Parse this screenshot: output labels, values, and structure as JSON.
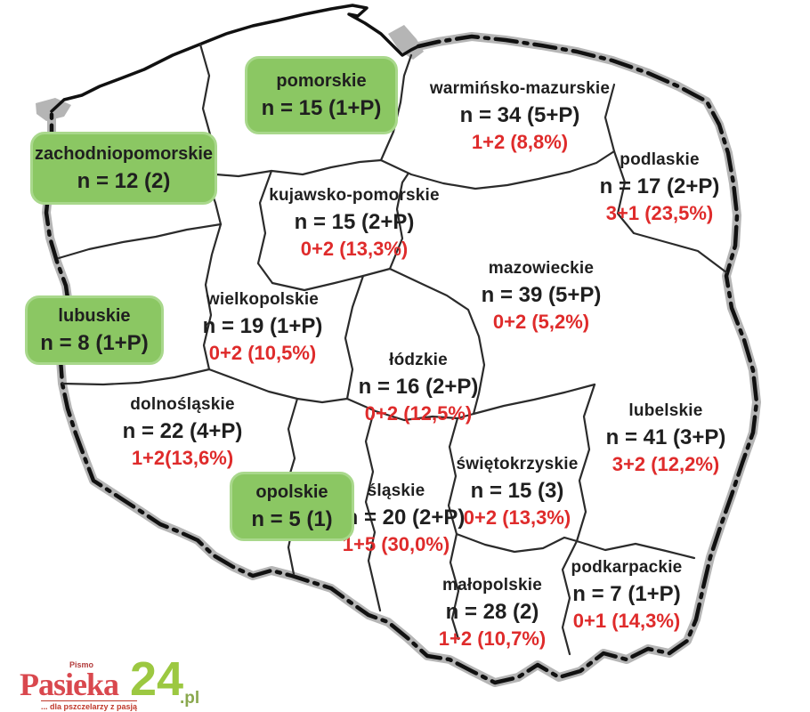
{
  "colors": {
    "box_green": "#8bc763",
    "box_green_border": "#a9d88c",
    "stat_red": "#df2b2b",
    "text_black": "#1f1f1f",
    "border_gray": "#b5b5b5"
  },
  "regions": [
    {
      "id": "pomorskie",
      "name": "pomorskie",
      "stat": "n = 15 (1+P)",
      "pct": null,
      "boxed": true
    },
    {
      "id": "zachodniopomorskie",
      "name": "zachodniopomorskie",
      "stat": "n = 12 (2)",
      "pct": null,
      "boxed": true
    },
    {
      "id": "warminsko-mazurskie",
      "name": "warmińsko-mazurskie",
      "stat": "n = 34 (5+P)",
      "pct": "1+2 (8,8%)",
      "boxed": false
    },
    {
      "id": "podlaskie",
      "name": "podlaskie",
      "stat": "n = 17 (2+P)",
      "pct": "3+1 (23,5%)",
      "boxed": false
    },
    {
      "id": "kujawsko-pomorskie",
      "name": "kujawsko-pomorskie",
      "stat": "n = 15 (2+P)",
      "pct": "0+2 (13,3%)",
      "boxed": false
    },
    {
      "id": "mazowieckie",
      "name": "mazowieckie",
      "stat": "n = 39 (5+P)",
      "pct": "0+2 (5,2%)",
      "boxed": false
    },
    {
      "id": "lubuskie",
      "name": "lubuskie",
      "stat": "n = 8 (1+P)",
      "pct": null,
      "boxed": true
    },
    {
      "id": "wielkopolskie",
      "name": "wielkopolskie",
      "stat": "n = 19 (1+P)",
      "pct": "0+2 (10,5%)",
      "boxed": false
    },
    {
      "id": "lodzkie",
      "name": "łódzkie",
      "stat": "n = 16 (2+P)",
      "pct": "0+2 (12,5%)",
      "boxed": false
    },
    {
      "id": "lubelskie",
      "name": "lubelskie",
      "stat": "n = 41 (3+P)",
      "pct": "3+2 (12,2%)",
      "boxed": false
    },
    {
      "id": "dolnoslaskie",
      "name": "dolnośląskie",
      "stat": "n = 22 (4+P)",
      "pct": "1+2(13,6%)",
      "boxed": false
    },
    {
      "id": "opolskie",
      "name": "opolskie",
      "stat": "n = 5 (1)",
      "pct": null,
      "boxed": true
    },
    {
      "id": "slaskie",
      "name": "śląskie",
      "stat": "n = 20 (2+P)",
      "pct": "1+5 (30,0%)",
      "boxed": false
    },
    {
      "id": "swietokrzyskie",
      "name": "świętokrzyskie",
      "stat": "n = 15 (3)",
      "pct": "0+2 (13,3%)",
      "boxed": false
    },
    {
      "id": "malopolskie",
      "name": "małopolskie",
      "stat": "n = 28 (2)",
      "pct": "1+2 (10,7%)",
      "boxed": false
    },
    {
      "id": "podkarpackie",
      "name": "podkarpackie",
      "stat": "n = 7 (1+P)",
      "pct": "0+1 (14,3%)",
      "boxed": false
    }
  ],
  "logo": {
    "pismo": "Pismo",
    "brand": "Pasieka",
    "number": "24",
    "tld": ".pl",
    "tagline": "... dla pszczelarzy z pasją"
  }
}
